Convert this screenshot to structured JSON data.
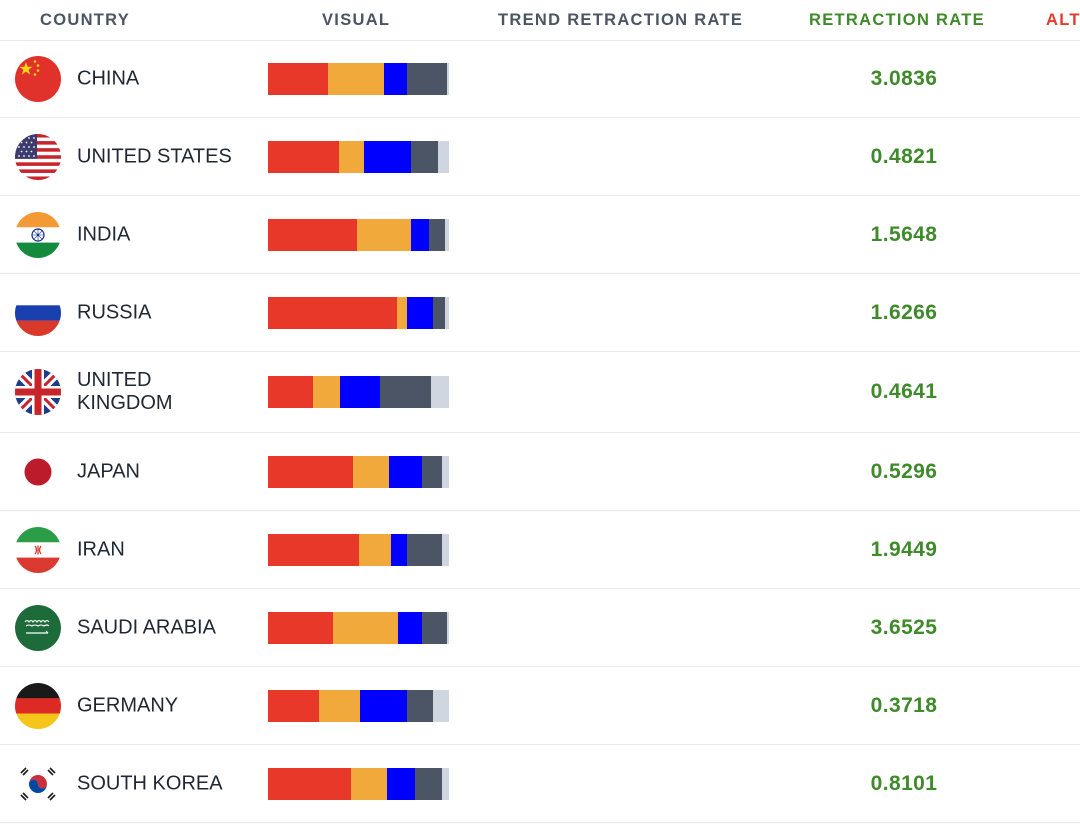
{
  "header": {
    "country": "COUNTRY",
    "visual": "VISUAL",
    "trend": "TREND RETRACTION RATE",
    "rate": "RETRACTION RATE",
    "alt": "ALT"
  },
  "colors": {
    "red": "#e8382a",
    "orange": "#f2a93b",
    "blue": "#0000ff",
    "slate": "#4b5566",
    "light": "#cfd6e0",
    "rate_green": "#3f8a2a"
  },
  "rows": [
    {
      "name": "China",
      "flag": "china-flag-icon",
      "rate": "3.0836",
      "segments": [
        0.33,
        0.31,
        0.13,
        0.22,
        0.01
      ]
    },
    {
      "name": "United States",
      "flag": "usa-flag-icon",
      "rate": "0.4821",
      "segments": [
        0.39,
        0.14,
        0.26,
        0.15,
        0.06
      ]
    },
    {
      "name": "India",
      "flag": "india-flag-icon",
      "rate": "1.5648",
      "segments": [
        0.49,
        0.3,
        0.1,
        0.09,
        0.02
      ]
    },
    {
      "name": "Russia",
      "flag": "russia-flag-icon",
      "rate": "1.6266",
      "segments": [
        0.71,
        0.06,
        0.14,
        0.07,
        0.02
      ]
    },
    {
      "name": "United Kingdom",
      "flag": "uk-flag-icon",
      "rate": "0.4641",
      "segments": [
        0.25,
        0.15,
        0.22,
        0.28,
        0.1
      ]
    },
    {
      "name": "Japan",
      "flag": "japan-flag-icon",
      "rate": "0.5296",
      "segments": [
        0.47,
        0.2,
        0.18,
        0.11,
        0.04
      ]
    },
    {
      "name": "Iran",
      "flag": "iran-flag-icon",
      "rate": "1.9449",
      "segments": [
        0.5,
        0.18,
        0.09,
        0.19,
        0.04
      ]
    },
    {
      "name": "Saudi Arabia",
      "flag": "saudi-arabia-flag-icon",
      "rate": "3.6525",
      "segments": [
        0.36,
        0.36,
        0.13,
        0.14,
        0.01
      ]
    },
    {
      "name": "Germany",
      "flag": "germany-flag-icon",
      "rate": "0.3718",
      "segments": [
        0.28,
        0.23,
        0.26,
        0.14,
        0.09
      ]
    },
    {
      "name": "South Korea",
      "flag": "south-korea-flag-icon",
      "rate": "0.8101",
      "segments": [
        0.46,
        0.2,
        0.15,
        0.15,
        0.04
      ]
    }
  ]
}
